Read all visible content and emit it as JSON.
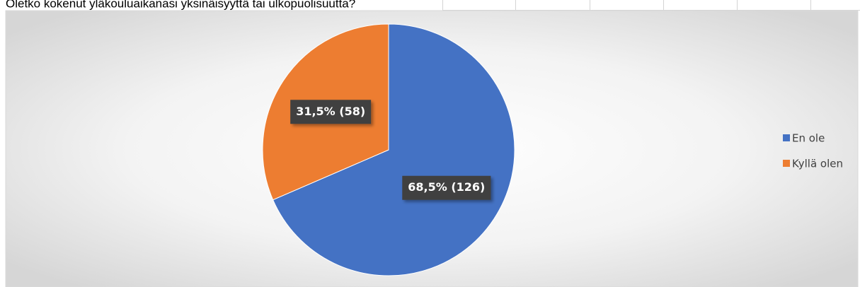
{
  "chart_data": {
    "type": "pie",
    "title": "Oletko kokenut yläkouluaikanasi yksinäisyyttä tai ulkopuolisuutta?",
    "categories": [
      "En ole",
      "Kyllä olen"
    ],
    "values": [
      68.5,
      31.5
    ],
    "value_labels": [
      "68,5% (126)",
      "31,5% (58)"
    ],
    "colors": [
      "#4472c4",
      "#ed7d31"
    ],
    "legend": "right"
  }
}
